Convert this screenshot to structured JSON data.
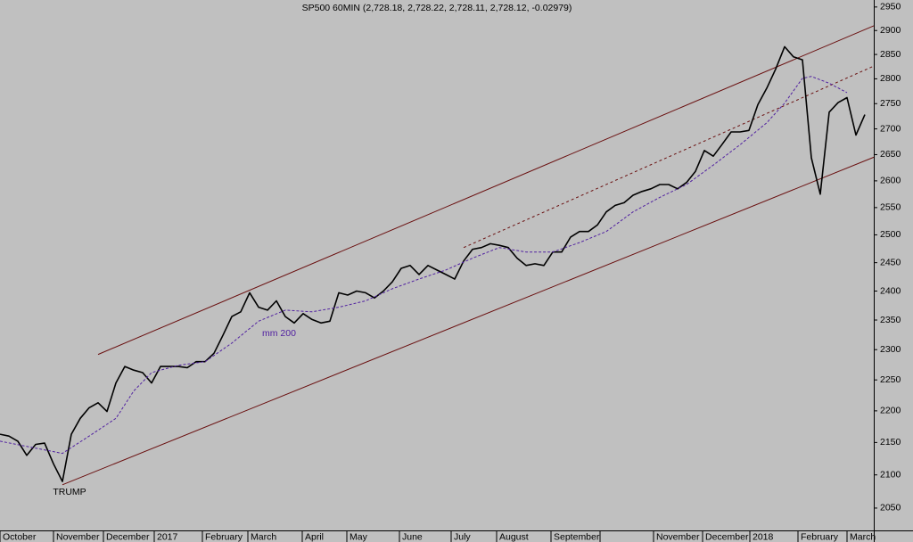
{
  "chart_data": {
    "type": "line",
    "title": "SP500 60MIN (2,728.18, 2,728.22, 2,728.11, 2,728.12, -0.02979)",
    "yscale": "log",
    "ylim": [
      2017,
      2965
    ],
    "yticks": [
      2050,
      2100,
      2150,
      2200,
      2250,
      2300,
      2350,
      2400,
      2450,
      2500,
      2550,
      2600,
      2650,
      2700,
      2750,
      2800,
      2850,
      2900,
      2950
    ],
    "xlim": [
      0,
      98
    ],
    "xticks": [
      {
        "value": 0,
        "label": "October"
      },
      {
        "value": 6,
        "label": "November"
      },
      {
        "value": 11.6,
        "label": "December"
      },
      {
        "value": 17.3,
        "label": "2017"
      },
      {
        "value": 22.7,
        "label": "February"
      },
      {
        "value": 27.8,
        "label": "March"
      },
      {
        "value": 33.9,
        "label": "April"
      },
      {
        "value": 38.9,
        "label": "May"
      },
      {
        "value": 44.8,
        "label": "June"
      },
      {
        "value": 50.6,
        "label": "July"
      },
      {
        "value": 55.7,
        "label": "August"
      },
      {
        "value": 61.8,
        "label": "September"
      },
      {
        "value": 67.3,
        "label": null
      },
      {
        "value": 73.3,
        "label": "November"
      },
      {
        "value": 78.8,
        "label": "December"
      },
      {
        "value": 84.1,
        "label": "2018"
      },
      {
        "value": 89.5,
        "label": "February"
      },
      {
        "value": 95,
        "label": "March"
      }
    ],
    "grid": false,
    "series": [
      {
        "color": "#000000",
        "values": [
          2163,
          2160,
          2152,
          2130,
          2147,
          2149,
          2117,
          2090,
          2163,
          2188,
          2205,
          2213,
          2199,
          2245,
          2272,
          2266,
          2262,
          2245,
          2272,
          2272,
          2272,
          2270,
          2280,
          2280,
          2294,
          2324,
          2356,
          2364,
          2397,
          2372,
          2367,
          2383,
          2356,
          2345,
          2361,
          2351,
          2345,
          2348,
          2397,
          2393,
          2400,
          2397,
          2388,
          2400,
          2416,
          2440,
          2445,
          2429,
          2445,
          2437,
          2429,
          2421,
          2453,
          2474,
          2477,
          2484,
          2481,
          2477,
          2458,
          2445,
          2448,
          2445,
          2469,
          2469,
          2496,
          2506,
          2506,
          2518,
          2542,
          2554,
          2559,
          2573,
          2580,
          2585,
          2593,
          2593,
          2585,
          2597,
          2618,
          2658,
          2647,
          2670,
          2694,
          2694,
          2697,
          2748,
          2781,
          2820,
          2866,
          2845,
          2839,
          2644,
          2575,
          2733,
          2752,
          2762,
          2688,
          2728.12
        ]
      },
      {
        "name": "mm 200",
        "color": "#5020a0",
        "dashed": true,
        "x": [
          0,
          7,
          10,
          13,
          15,
          17,
          20,
          23,
          26,
          29,
          32,
          35,
          38,
          41,
          44,
          47,
          50,
          53,
          56,
          59,
          62,
          65,
          68,
          71,
          74,
          77,
          80,
          83,
          86,
          88,
          90,
          91,
          93,
          95
        ],
        "values": [
          2152,
          2133,
          2160,
          2188,
          2232,
          2262,
          2274,
          2280,
          2311,
          2348,
          2367,
          2364,
          2372,
          2383,
          2404,
          2421,
          2437,
          2458,
          2477,
          2469,
          2469,
          2486,
          2506,
          2542,
          2569,
          2593,
          2630,
          2669,
          2712,
          2751,
          2801,
          2805,
          2791,
          2772
        ]
      }
    ],
    "trendlines": [
      {
        "x": [
          11,
          98
        ],
        "values": [
          2292,
          2910
        ],
        "color": "#6a1010",
        "dashed": false
      },
      {
        "x": [
          7,
          98
        ],
        "values": [
          2085,
          2645
        ],
        "color": "#6a1010",
        "dashed": false
      },
      {
        "x": [
          52,
          98
        ],
        "values": [
          2477,
          2826
        ],
        "color": "#6a1010",
        "dashed": true
      }
    ],
    "annotations": [
      "TRUMP"
    ]
  }
}
